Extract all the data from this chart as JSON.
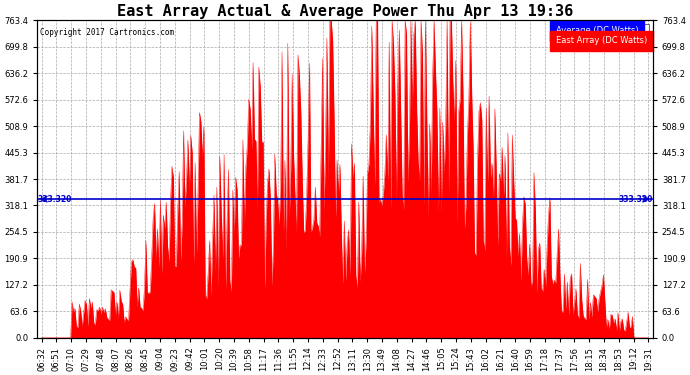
{
  "title": "East Array Actual & Average Power Thu Apr 13 19:36",
  "copyright": "Copyright 2017 Cartronics.com",
  "legend_avg_label": "Average (DC Watts)",
  "legend_east_label": "East Array (DC Watts)",
  "avg_line_value": 333.32,
  "avg_line_label": "333.320",
  "ymax": 763.4,
  "ymin": 0.0,
  "yticks": [
    0.0,
    63.6,
    127.2,
    190.9,
    254.5,
    318.1,
    381.7,
    445.3,
    508.9,
    572.6,
    636.2,
    699.8,
    763.4
  ],
  "background_color": "#ffffff",
  "plot_bg_color": "#ffffff",
  "grid_color": "#aaaaaa",
  "fill_color": "#ff0000",
  "line_color": "#ff0000",
  "avg_line_color": "#0000cc",
  "title_fontsize": 11,
  "tick_fontsize": 6,
  "xtick_labels": [
    "06:32",
    "06:51",
    "07:10",
    "07:29",
    "07:48",
    "08:07",
    "08:26",
    "08:45",
    "09:04",
    "09:23",
    "09:42",
    "10:01",
    "10:20",
    "10:39",
    "10:58",
    "11:17",
    "11:36",
    "11:55",
    "12:14",
    "12:33",
    "12:52",
    "13:11",
    "13:30",
    "13:49",
    "14:08",
    "14:27",
    "14:46",
    "15:05",
    "15:24",
    "15:43",
    "16:02",
    "16:21",
    "16:40",
    "16:59",
    "17:18",
    "17:37",
    "17:56",
    "18:15",
    "18:34",
    "18:53",
    "19:12",
    "19:31"
  ]
}
